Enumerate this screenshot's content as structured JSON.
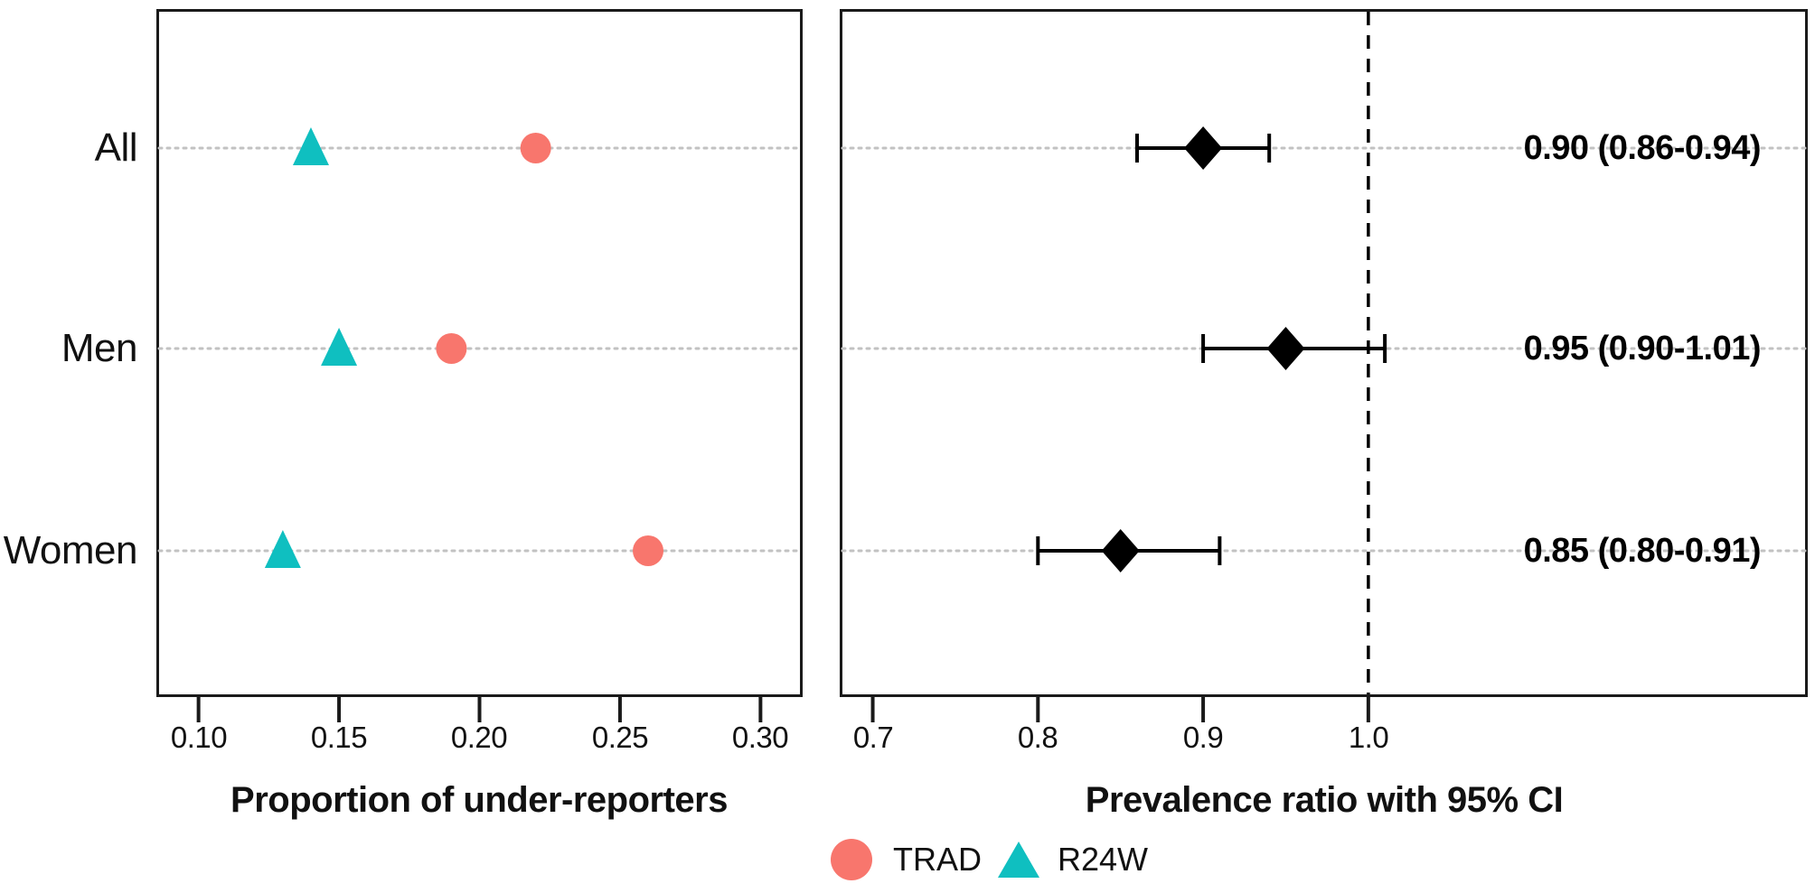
{
  "chart_data": [
    {
      "panel": "left",
      "type": "scatter",
      "xlabel": "Proportion of under-reporters",
      "categories": [
        "All",
        "Men",
        "Women"
      ],
      "series": [
        {
          "name": "TRAD",
          "marker": "circle",
          "color": "#F8766D",
          "values": [
            0.22,
            0.19,
            0.26
          ]
        },
        {
          "name": "R24W",
          "marker": "triangle",
          "color": "#0FBFC0",
          "values": [
            0.14,
            0.15,
            0.13
          ]
        }
      ],
      "x_ticks": [
        0.1,
        0.15,
        0.2,
        0.25,
        0.3
      ],
      "x_tick_labels": [
        "0.10",
        "0.15",
        "0.20",
        "0.25",
        "0.30"
      ],
      "xlim": [
        0.085,
        0.315
      ],
      "grid": "horizontal dotted guide per category row"
    },
    {
      "panel": "right",
      "type": "forest",
      "xlabel": "Prevalence ratio with 95% CI",
      "categories": [
        "All",
        "Men",
        "Women"
      ],
      "estimates": [
        0.9,
        0.95,
        0.85
      ],
      "ci_low": [
        0.86,
        0.9,
        0.8
      ],
      "ci_high": [
        0.94,
        1.01,
        0.91
      ],
      "ci_labels": [
        "0.90 (0.86-0.94)",
        "0.95 (0.90-1.01)",
        "0.85 (0.80-0.91)"
      ],
      "marker": "diamond",
      "marker_color": "#000000",
      "reference_line": 1.0,
      "x_ticks": [
        0.7,
        0.8,
        0.9,
        1.0
      ],
      "x_tick_labels": [
        "0.7",
        "0.8",
        "0.9",
        "1.0"
      ],
      "xlim": [
        0.68,
        1.266
      ],
      "grid": "horizontal dotted guide per category row"
    }
  ],
  "legend": {
    "items": [
      {
        "label": "TRAD",
        "marker": "circle",
        "color": "#F8766D"
      },
      {
        "label": "R24W",
        "marker": "triangle",
        "color": "#0FBFC0"
      }
    ]
  },
  "colors": {
    "trad": "#F8766D",
    "r24w": "#0FBFC0",
    "guide_dots": "#c2c2c2",
    "panel_border": "#1a1a1a",
    "text": "#111111"
  }
}
